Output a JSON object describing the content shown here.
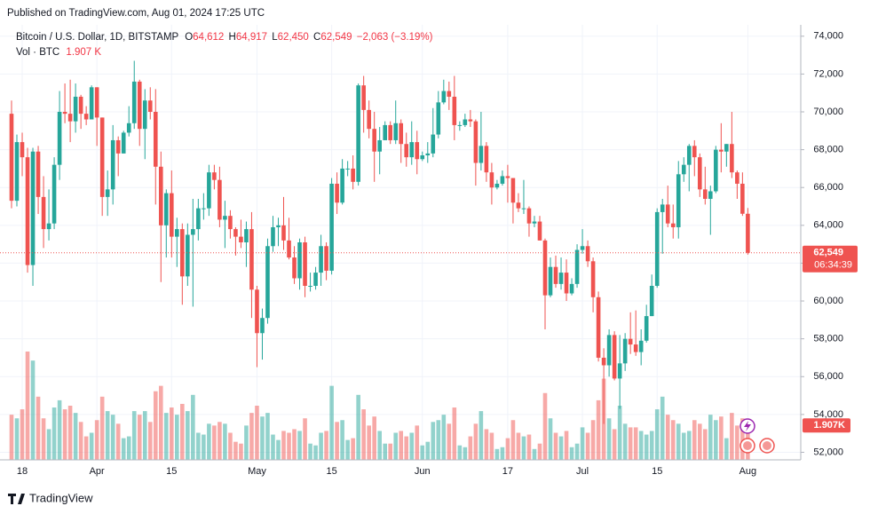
{
  "header": {
    "published": "Published on TradingView.com, Aug 01, 2024 17:25 UTC",
    "symbol": "Bitcoin / U.S. Dollar, 1D, BITSTAMP",
    "ohlc": [
      {
        "key": "O",
        "value": "64,612"
      },
      {
        "key": "H",
        "value": "64,917"
      },
      {
        "key": "L",
        "value": "62,450"
      },
      {
        "key": "C",
        "value": "62,549"
      }
    ],
    "change": "−2,063 (−3.19%)",
    "volume_key": "Vol · BTC",
    "volume": "1.907 K"
  },
  "footer": {
    "brand": "TradingView"
  },
  "chart_data": {
    "type": "candlestick",
    "up_color": "#26a69a",
    "down_color": "#ef5350",
    "grid": true,
    "last_price_label": "62,549",
    "countdown": "06:34:39",
    "volume_tag": "1.907K",
    "ylim": [
      51600,
      74600
    ],
    "yticks": [
      {
        "value": 52000,
        "label": "52,000"
      },
      {
        "value": 54000,
        "label": "54,000"
      },
      {
        "value": 56000,
        "label": "56,000"
      },
      {
        "value": 58000,
        "label": "58,000"
      },
      {
        "value": 60000,
        "label": "60,000"
      },
      {
        "value": 62000,
        "label": "62,000"
      },
      {
        "value": 64000,
        "label": "64,000"
      },
      {
        "value": 66000,
        "label": "66,000"
      },
      {
        "value": 68000,
        "label": "68,000"
      },
      {
        "value": 70000,
        "label": "70,000"
      },
      {
        "value": 72000,
        "label": "72,000"
      },
      {
        "value": 74000,
        "label": "74,000"
      }
    ],
    "categories": [
      null,
      null,
      "18",
      null,
      null,
      null,
      null,
      null,
      null,
      null,
      null,
      null,
      null,
      null,
      null,
      null,
      "Apr",
      null,
      null,
      null,
      null,
      null,
      null,
      null,
      null,
      null,
      null,
      null,
      null,
      null,
      "15",
      null,
      null,
      null,
      null,
      null,
      null,
      null,
      null,
      null,
      null,
      null,
      null,
      null,
      null,
      null,
      "May",
      null,
      null,
      null,
      null,
      null,
      null,
      null,
      null,
      null,
      null,
      null,
      null,
      null,
      "15",
      null,
      null,
      null,
      null,
      null,
      null,
      null,
      null,
      null,
      null,
      null,
      null,
      null,
      null,
      null,
      null,
      "Jun",
      null,
      null,
      null,
      null,
      null,
      null,
      null,
      null,
      null,
      null,
      null,
      null,
      null,
      null,
      null,
      "17",
      null,
      null,
      null,
      null,
      null,
      null,
      null,
      null,
      null,
      null,
      null,
      null,
      null,
      "Jul",
      null,
      null,
      null,
      null,
      null,
      null,
      null,
      null,
      null,
      null,
      null,
      null,
      null,
      "15",
      null,
      null,
      null,
      null,
      null,
      null,
      null,
      null,
      null,
      null,
      null,
      null,
      null,
      null,
      null,
      null,
      "Aug"
    ],
    "open": [
      69900,
      65300,
      68400,
      67600,
      61900,
      67900,
      65500,
      63800,
      64100,
      67200,
      70000,
      69900,
      69500,
      70800,
      69900,
      69600,
      71300,
      69700,
      65500,
      65900,
      68500,
      67800,
      68900,
      69400,
      71600,
      69100,
      70600,
      70000,
      67100,
      64000,
      65700,
      63400,
      63800,
      61300,
      63500,
      63800,
      64900,
      64900,
      66800,
      66400,
      64300,
      64500,
      63800,
      63400,
      63100,
      63800,
      60600,
      58300,
      59100,
      62900,
      63900,
      64000,
      63200,
      62300,
      61200,
      63100,
      60800,
      60800,
      61500,
      62900,
      61600,
      66200,
      65200,
      67000,
      67000,
      66300,
      71400,
      70100,
      69100,
      67900,
      68500,
      69300,
      68500,
      69400,
      68300,
      67600,
      68400,
      67500,
      67700,
      67800,
      68800,
      70500,
      71100,
      70800,
      69300,
      69300,
      69600,
      69500,
      67300,
      68200,
      66800,
      66000,
      66200,
      66600,
      66500,
      65200,
      64900,
      64900,
      64100,
      64200,
      63200,
      60300,
      61800,
      60900,
      61500,
      60400,
      60900,
      62700,
      62900,
      62100,
      60200,
      57000,
      56600,
      58200,
      55900,
      56700,
      58000,
      57700,
      57300,
      57900,
      59200,
      60800,
      64700,
      65100,
      64100,
      63900,
      66700,
      67200,
      68200,
      67600,
      65900,
      65400,
      65800,
      68000,
      67900,
      68300,
      66800,
      66200,
      64612
    ],
    "high": [
      70600,
      68800,
      68900,
      68100,
      68100,
      68200,
      66600,
      65900,
      67600,
      71100,
      71500,
      71700,
      71500,
      70900,
      70300,
      71400,
      71300,
      69700,
      66900,
      69300,
      68700,
      69000,
      70300,
      72700,
      71700,
      71200,
      71300,
      71200,
      67900,
      65900,
      66900,
      64400,
      64100,
      64100,
      65400,
      65400,
      65700,
      67200,
      67200,
      67100,
      65300,
      64800,
      63900,
      64300,
      64200,
      64700,
      60800,
      59600,
      63300,
      64500,
      64400,
      65500,
      64400,
      62900,
      63300,
      63400,
      61500,
      61800,
      63500,
      63100,
      66500,
      66800,
      67500,
      67400,
      67700,
      71500,
      71900,
      70600,
      70000,
      69200,
      69500,
      69500,
      70600,
      69600,
      68900,
      69500,
      69000,
      67900,
      68400,
      70200,
      71100,
      71700,
      71600,
      71900,
      69500,
      69900,
      70100,
      69600,
      70000,
      68400,
      67300,
      66400,
      66900,
      67200,
      66500,
      65700,
      66400,
      65000,
      64500,
      64500,
      63300,
      62300,
      62400,
      62300,
      62200,
      61200,
      63000,
      63800,
      63200,
      62300,
      60500,
      57500,
      58500,
      58400,
      58200,
      58300,
      59400,
      59500,
      58500,
      59800,
      61400,
      64900,
      65400,
      66100,
      65100,
      67400,
      67600,
      68300,
      68500,
      67800,
      67100,
      66100,
      68200,
      69400,
      68300,
      70000,
      66900,
      66800,
      64917
    ],
    "low": [
      64900,
      65000,
      66600,
      61500,
      60800,
      64600,
      62800,
      63200,
      63800,
      66400,
      69400,
      68400,
      68900,
      69100,
      69300,
      69600,
      68200,
      64500,
      64500,
      65100,
      66600,
      67800,
      68700,
      69100,
      68200,
      67500,
      69600,
      65100,
      61000,
      62300,
      62300,
      61800,
      59800,
      60800,
      59700,
      63200,
      64300,
      64500,
      65900,
      63900,
      62800,
      63300,
      62400,
      62800,
      61800,
      59100,
      56500,
      56900,
      58800,
      62600,
      62900,
      62700,
      62200,
      60900,
      60600,
      60200,
      60500,
      60600,
      60800,
      61100,
      61400,
      64600,
      65100,
      66600,
      65900,
      66100,
      68900,
      68600,
      66300,
      66700,
      68500,
      68300,
      68300,
      67300,
      67100,
      67200,
      66700,
      67400,
      67300,
      67600,
      68600,
      70400,
      70100,
      68500,
      69000,
      69200,
      69200,
      66100,
      66900,
      66300,
      65100,
      65900,
      66100,
      65200,
      64100,
      64700,
      64600,
      63400,
      63900,
      63200,
      58500,
      60200,
      60700,
      60600,
      60000,
      60300,
      60700,
      62500,
      61800,
      59400,
      56800,
      53500,
      56000,
      55800,
      54300,
      56300,
      57200,
      57100,
      56600,
      57800,
      59200,
      60700,
      62500,
      63900,
      63300,
      63300,
      66300,
      65800,
      66600,
      65500,
      65100,
      63500,
      65700,
      66800,
      67100,
      66500,
      65400,
      64500,
      62450
    ],
    "close": [
      65300,
      68400,
      67600,
      61900,
      67900,
      65500,
      63800,
      64100,
      67200,
      70000,
      69900,
      69500,
      70800,
      69900,
      69600,
      71300,
      69700,
      65500,
      65900,
      68500,
      67800,
      68900,
      69400,
      71600,
      69100,
      70600,
      70000,
      67100,
      64000,
      65700,
      63400,
      63800,
      61300,
      63500,
      63800,
      64900,
      64900,
      66800,
      66400,
      64300,
      64500,
      63800,
      63400,
      63100,
      63800,
      60600,
      58300,
      59100,
      62900,
      63900,
      64000,
      63200,
      62300,
      61200,
      63100,
      60800,
      60800,
      61500,
      62900,
      61600,
      66200,
      65200,
      67000,
      67000,
      66300,
      71400,
      70100,
      69100,
      67900,
      68500,
      69300,
      68500,
      69400,
      68300,
      67600,
      68400,
      67500,
      67700,
      67800,
      68800,
      70500,
      71100,
      70800,
      69300,
      69300,
      69600,
      69500,
      67300,
      68200,
      66800,
      66000,
      66200,
      66600,
      66500,
      65200,
      64900,
      64900,
      64100,
      64200,
      63200,
      60300,
      61800,
      60900,
      61500,
      60400,
      60900,
      62700,
      62900,
      62100,
      60200,
      57000,
      56600,
      58200,
      55900,
      56700,
      58000,
      57700,
      57300,
      57900,
      59200,
      60800,
      64700,
      65100,
      64100,
      63900,
      66700,
      67200,
      68200,
      67600,
      65900,
      65400,
      65800,
      68000,
      67900,
      68300,
      66800,
      66200,
      64612,
      62549
    ],
    "volume": [
      2500,
      2300,
      2800,
      6000,
      5500,
      3500,
      2300,
      1700,
      2900,
      3300,
      2800,
      3000,
      2600,
      2100,
      1300,
      1500,
      2200,
      3500,
      2700,
      2500,
      2000,
      1200,
      1300,
      2700,
      2500,
      2700,
      2100,
      3800,
      4100,
      2600,
      2900,
      2500,
      3100,
      2700,
      3600,
      1500,
      1400,
      2000,
      1900,
      2100,
      2000,
      1500,
      1000,
      900,
      1900,
      2600,
      3000,
      2400,
      2600,
      1400,
      1100,
      1600,
      1500,
      1700,
      1600,
      2300,
      900,
      800,
      1500,
      1600,
      4100,
      2100,
      2200,
      1100,
      1200,
      3600,
      2800,
      1900,
      2400,
      1600,
      900,
      900,
      1500,
      1600,
      1300,
      1500,
      1900,
      800,
      1000,
      2100,
      2200,
      2500,
      2000,
      2900,
      800,
      700,
      1300,
      2000,
      2700,
      1700,
      1500,
      600,
      700,
      1200,
      2200,
      1500,
      1300,
      1400,
      600,
      900,
      3700,
      2300,
      1500,
      1300,
      1600,
      700,
      900,
      1800,
      1500,
      2200,
      3300,
      4500,
      2300,
      1700,
      3000,
      2000,
      1800,
      1800,
      1600,
      1400,
      1600,
      2800,
      3500,
      2500,
      2200,
      2000,
      1500,
      1600,
      2200,
      2000,
      1700,
      2500,
      2200,
      2400,
      1200,
      2600,
      1900,
      2300,
      1907
    ]
  }
}
